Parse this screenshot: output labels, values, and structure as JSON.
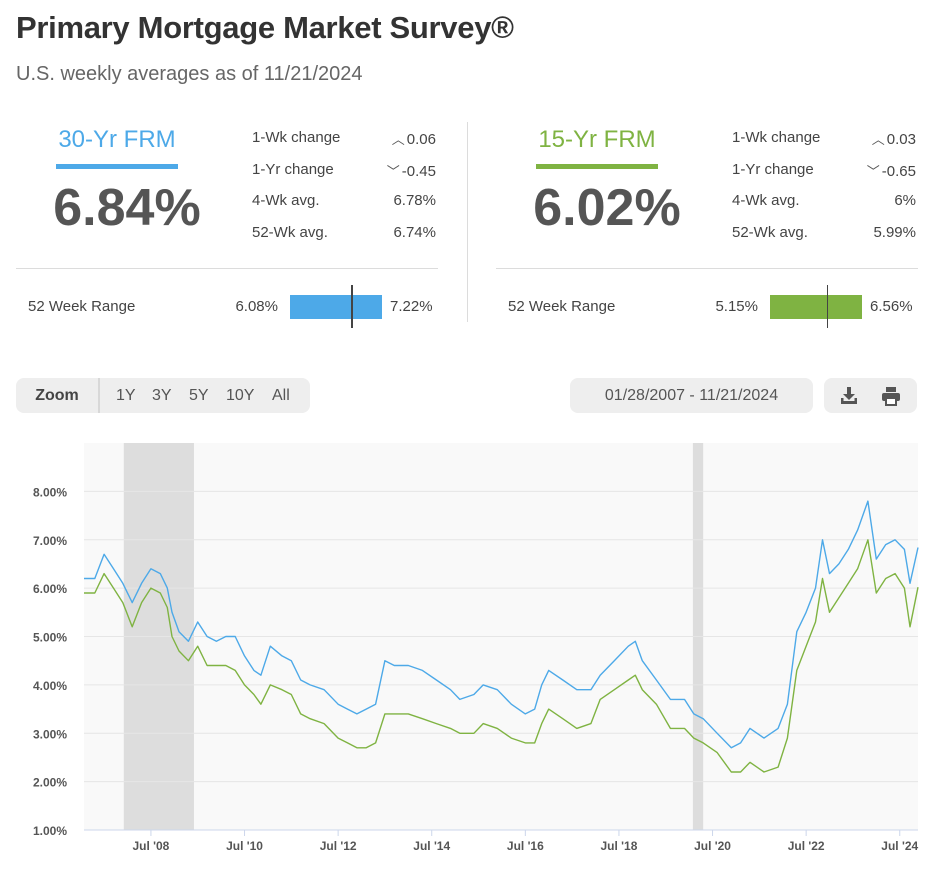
{
  "header": {
    "title": "Primary Mortgage Market Survey®",
    "subtitle": "U.S. weekly averages as of 11/21/2024"
  },
  "colors": {
    "frm30": "#4da9e8",
    "frm15": "#7fb342",
    "recession": "#dddddd"
  },
  "frm30": {
    "label": "30-Yr FRM",
    "rate": "6.84%",
    "stats": [
      {
        "label": "1-Wk change",
        "value": "0.06",
        "direction": "up"
      },
      {
        "label": "1-Yr change",
        "value": "-0.45",
        "direction": "down"
      },
      {
        "label": "4-Wk avg.",
        "value": "6.78%",
        "direction": ""
      },
      {
        "label": "52-Wk avg.",
        "value": "6.74%",
        "direction": ""
      }
    ],
    "range": {
      "label": "52 Week Range",
      "min": "6.08%",
      "max": "7.22%",
      "current": 6.84,
      "low": 6.08,
      "high": 7.22
    }
  },
  "frm15": {
    "label": "15-Yr FRM",
    "rate": "6.02%",
    "stats": [
      {
        "label": "1-Wk change",
        "value": "0.03",
        "direction": "up"
      },
      {
        "label": "1-Yr change",
        "value": "-0.65",
        "direction": "down"
      },
      {
        "label": "4-Wk avg.",
        "value": "6%",
        "direction": ""
      },
      {
        "label": "52-Wk avg.",
        "value": "5.99%",
        "direction": ""
      }
    ],
    "range": {
      "label": "52 Week Range",
      "min": "5.15%",
      "max": "6.56%",
      "current": 6.02,
      "low": 5.15,
      "high": 6.56
    }
  },
  "controls": {
    "zoom_label": "Zoom",
    "zoom_options": [
      "1Y",
      "3Y",
      "5Y",
      "10Y",
      "All"
    ],
    "date_range": "01/28/2007 - 11/21/2024",
    "download_icon": "download-icon",
    "print_icon": "print-icon"
  },
  "chart_data": {
    "type": "line",
    "title": "",
    "xlabel": "",
    "ylabel": "",
    "xlim": [
      2007.07,
      2024.89
    ],
    "ylim": [
      1.0,
      9.0
    ],
    "y_ticks": [
      "1.00%",
      "2.00%",
      "3.00%",
      "4.00%",
      "5.00%",
      "6.00%",
      "7.00%",
      "8.00%"
    ],
    "x_ticks": [
      {
        "label": "Jul '08",
        "value": 2008.5
      },
      {
        "label": "Jul '10",
        "value": 2010.5
      },
      {
        "label": "Jul '12",
        "value": 2012.5
      },
      {
        "label": "Jul '14",
        "value": 2014.5
      },
      {
        "label": "Jul '16",
        "value": 2016.5
      },
      {
        "label": "Jul '18",
        "value": 2018.5
      },
      {
        "label": "Jul '20",
        "value": 2020.5
      },
      {
        "label": "Jul '22",
        "value": 2022.5
      },
      {
        "label": "Jul '24",
        "value": 2024.5
      }
    ],
    "recessions": [
      [
        2007.92,
        2009.42
      ],
      [
        2020.08,
        2020.3
      ]
    ],
    "series": [
      {
        "name": "30-Yr FRM",
        "x": [
          2007.07,
          2007.3,
          2007.5,
          2007.7,
          2007.9,
          2008.1,
          2008.3,
          2008.5,
          2008.7,
          2008.85,
          2008.95,
          2009.1,
          2009.3,
          2009.5,
          2009.7,
          2009.9,
          2010.1,
          2010.3,
          2010.5,
          2010.7,
          2010.85,
          2011.05,
          2011.3,
          2011.5,
          2011.7,
          2011.9,
          2012.2,
          2012.5,
          2012.7,
          2012.9,
          2013.1,
          2013.3,
          2013.5,
          2013.7,
          2014.0,
          2014.3,
          2014.6,
          2014.9,
          2015.1,
          2015.4,
          2015.6,
          2015.9,
          2016.2,
          2016.5,
          2016.7,
          2016.85,
          2017.0,
          2017.3,
          2017.6,
          2017.9,
          2018.1,
          2018.4,
          2018.7,
          2018.85,
          2019.0,
          2019.3,
          2019.6,
          2019.9,
          2020.1,
          2020.3,
          2020.6,
          2020.9,
          2021.1,
          2021.3,
          2021.6,
          2021.9,
          2022.1,
          2022.3,
          2022.5,
          2022.7,
          2022.85,
          2023.0,
          2023.2,
          2023.4,
          2023.6,
          2023.82,
          2024.0,
          2024.2,
          2024.4,
          2024.6,
          2024.72,
          2024.89
        ],
        "values": [
          6.2,
          6.2,
          6.7,
          6.4,
          6.1,
          5.7,
          6.1,
          6.4,
          6.3,
          6.0,
          5.5,
          5.1,
          4.9,
          5.3,
          5.0,
          4.9,
          5.0,
          5.0,
          4.6,
          4.3,
          4.2,
          4.8,
          4.6,
          4.5,
          4.1,
          4.0,
          3.9,
          3.6,
          3.5,
          3.4,
          3.5,
          3.6,
          4.5,
          4.4,
          4.4,
          4.3,
          4.1,
          3.9,
          3.7,
          3.8,
          4.0,
          3.9,
          3.6,
          3.4,
          3.5,
          4.0,
          4.3,
          4.1,
          3.9,
          3.9,
          4.2,
          4.5,
          4.8,
          4.9,
          4.5,
          4.1,
          3.7,
          3.7,
          3.4,
          3.3,
          3.0,
          2.7,
          2.8,
          3.1,
          2.9,
          3.1,
          3.6,
          5.1,
          5.5,
          6.0,
          7.0,
          6.3,
          6.5,
          6.8,
          7.2,
          7.8,
          6.6,
          6.9,
          7.0,
          6.8,
          6.1,
          6.84
        ]
      },
      {
        "name": "15-Yr FRM",
        "x": [
          2007.07,
          2007.3,
          2007.5,
          2007.7,
          2007.9,
          2008.1,
          2008.3,
          2008.5,
          2008.7,
          2008.85,
          2008.95,
          2009.1,
          2009.3,
          2009.5,
          2009.7,
          2009.9,
          2010.1,
          2010.3,
          2010.5,
          2010.7,
          2010.85,
          2011.05,
          2011.3,
          2011.5,
          2011.7,
          2011.9,
          2012.2,
          2012.5,
          2012.7,
          2012.9,
          2013.1,
          2013.3,
          2013.5,
          2013.7,
          2014.0,
          2014.3,
          2014.6,
          2014.9,
          2015.1,
          2015.4,
          2015.6,
          2015.9,
          2016.2,
          2016.5,
          2016.7,
          2016.85,
          2017.0,
          2017.3,
          2017.6,
          2017.9,
          2018.1,
          2018.4,
          2018.7,
          2018.85,
          2019.0,
          2019.3,
          2019.6,
          2019.9,
          2020.1,
          2020.3,
          2020.6,
          2020.9,
          2021.1,
          2021.3,
          2021.6,
          2021.9,
          2022.1,
          2022.3,
          2022.5,
          2022.7,
          2022.85,
          2023.0,
          2023.2,
          2023.4,
          2023.6,
          2023.82,
          2024.0,
          2024.2,
          2024.4,
          2024.6,
          2024.72,
          2024.89
        ],
        "values": [
          5.9,
          5.9,
          6.3,
          6.0,
          5.7,
          5.2,
          5.7,
          6.0,
          5.9,
          5.6,
          5.0,
          4.7,
          4.5,
          4.8,
          4.4,
          4.4,
          4.4,
          4.3,
          4.0,
          3.8,
          3.6,
          4.0,
          3.9,
          3.8,
          3.4,
          3.3,
          3.2,
          2.9,
          2.8,
          2.7,
          2.7,
          2.8,
          3.4,
          3.4,
          3.4,
          3.3,
          3.2,
          3.1,
          3.0,
          3.0,
          3.2,
          3.1,
          2.9,
          2.8,
          2.8,
          3.2,
          3.5,
          3.3,
          3.1,
          3.2,
          3.7,
          3.9,
          4.1,
          4.2,
          3.9,
          3.6,
          3.1,
          3.1,
          2.9,
          2.8,
          2.6,
          2.2,
          2.2,
          2.4,
          2.2,
          2.3,
          2.9,
          4.3,
          4.8,
          5.3,
          6.2,
          5.5,
          5.8,
          6.1,
          6.4,
          7.0,
          5.9,
          6.2,
          6.3,
          6.0,
          5.2,
          6.02
        ]
      }
    ]
  }
}
